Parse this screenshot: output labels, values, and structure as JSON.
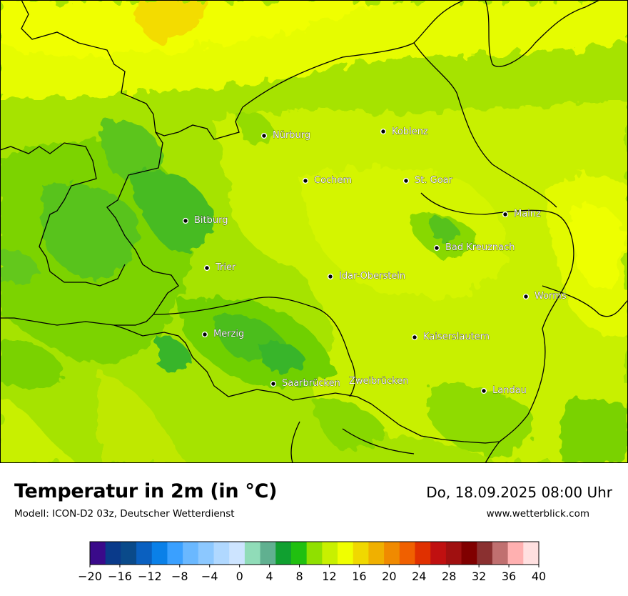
{
  "header": {
    "title": "Temperatur in 2m (in °C)",
    "model": "Modell: ICON-D2 03z, Deutscher Wetterdienst",
    "datetime": "Do, 18.09.2025 08:00 Uhr",
    "website": "www.wetterblick.com"
  },
  "colors": {
    "border": "#000000",
    "background_green": "#9ee000",
    "yellow": "#eaff00",
    "light_yellow_green": "#c8f000"
  },
  "cities": [
    {
      "name": "Nürburg"
    },
    {
      "name": "Koblenz"
    },
    {
      "name": "Cochem"
    },
    {
      "name": "St. Goar"
    },
    {
      "name": "Mainz"
    },
    {
      "name": "Bitburg"
    },
    {
      "name": "Bad Kreuznach"
    },
    {
      "name": "Trier"
    },
    {
      "name": "Idar-Oberstein"
    },
    {
      "name": "Worms"
    },
    {
      "name": "Kaiserslautern"
    },
    {
      "name": "Merzig"
    },
    {
      "name": "Saarbrücken"
    },
    {
      "name": "Zweibrücken"
    },
    {
      "name": "Landau"
    }
  ],
  "legend": {
    "tick_labels": [
      "−20",
      "−16",
      "−12",
      "−8",
      "−4",
      "0",
      "4",
      "8",
      "12",
      "16",
      "20",
      "24",
      "28",
      "32",
      "36",
      "40"
    ],
    "colors": [
      "#3a0a8a",
      "#0a3a8a",
      "#0a4a8a",
      "#0a60c0",
      "#0a80e8",
      "#3aa0ff",
      "#6ab8ff",
      "#8cc8ff",
      "#b0d8ff",
      "#cde4ff",
      "#90dcb8",
      "#60b090",
      "#10a030",
      "#20c010",
      "#90e000",
      "#c8f000",
      "#f0ff00",
      "#f0d800",
      "#f0b000",
      "#f08a00",
      "#f06000",
      "#e03000",
      "#c01010",
      "#a01010",
      "#800000",
      "#8a3030",
      "#c07070",
      "#ffb0b0",
      "#ffe0e0"
    ]
  }
}
